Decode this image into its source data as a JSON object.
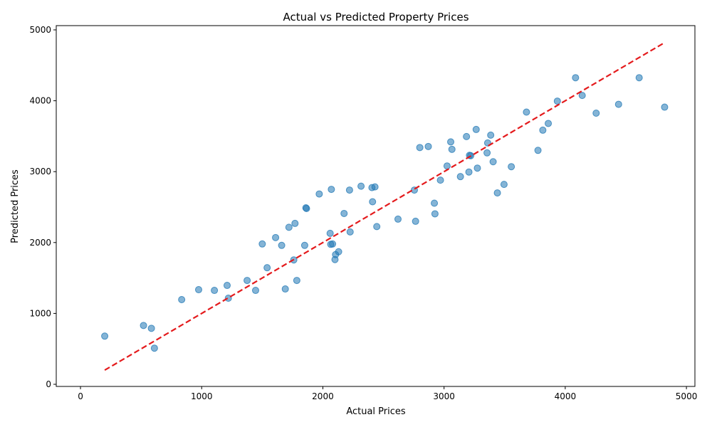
{
  "chart_data": {
    "type": "scatter",
    "title": "Actual vs Predicted Property Prices",
    "xlabel": "Actual Prices",
    "ylabel": "Predicted Prices",
    "xlim": [
      -200,
      5070
    ],
    "ylim": [
      -30,
      5060
    ],
    "xticks": [
      0,
      1000,
      2000,
      3000,
      4000,
      5000
    ],
    "yticks": [
      0,
      1000,
      2000,
      3000,
      4000,
      5000
    ],
    "grid": false,
    "point_color": "#1f77b4",
    "reference_line": {
      "label": "",
      "color": "#e41a1c",
      "style": "dashed",
      "x": [
        200,
        4820
      ],
      "y": [
        200,
        4820
      ]
    },
    "points": [
      {
        "x": 200,
        "y": 680
      },
      {
        "x": 520,
        "y": 830
      },
      {
        "x": 585,
        "y": 790
      },
      {
        "x": 610,
        "y": 510
      },
      {
        "x": 835,
        "y": 1195
      },
      {
        "x": 975,
        "y": 1335
      },
      {
        "x": 1105,
        "y": 1325
      },
      {
        "x": 1210,
        "y": 1395
      },
      {
        "x": 1220,
        "y": 1215
      },
      {
        "x": 1375,
        "y": 1465
      },
      {
        "x": 1445,
        "y": 1325
      },
      {
        "x": 1500,
        "y": 1980
      },
      {
        "x": 1540,
        "y": 1645
      },
      {
        "x": 1610,
        "y": 2070
      },
      {
        "x": 1660,
        "y": 1960
      },
      {
        "x": 1690,
        "y": 1345
      },
      {
        "x": 1720,
        "y": 2215
      },
      {
        "x": 1760,
        "y": 1755
      },
      {
        "x": 1770,
        "y": 2270
      },
      {
        "x": 1785,
        "y": 1465
      },
      {
        "x": 1850,
        "y": 1960
      },
      {
        "x": 1860,
        "y": 2490
      },
      {
        "x": 1865,
        "y": 2480
      },
      {
        "x": 1970,
        "y": 2685
      },
      {
        "x": 2060,
        "y": 2130
      },
      {
        "x": 2065,
        "y": 1975
      },
      {
        "x": 2070,
        "y": 2750
      },
      {
        "x": 2080,
        "y": 1980
      },
      {
        "x": 2100,
        "y": 1760
      },
      {
        "x": 2105,
        "y": 1830
      },
      {
        "x": 2130,
        "y": 1870
      },
      {
        "x": 2175,
        "y": 2410
      },
      {
        "x": 2220,
        "y": 2740
      },
      {
        "x": 2225,
        "y": 2150
      },
      {
        "x": 2315,
        "y": 2795
      },
      {
        "x": 2405,
        "y": 2775
      },
      {
        "x": 2410,
        "y": 2575
      },
      {
        "x": 2430,
        "y": 2785
      },
      {
        "x": 2445,
        "y": 2225
      },
      {
        "x": 2620,
        "y": 2330
      },
      {
        "x": 2755,
        "y": 2740
      },
      {
        "x": 2765,
        "y": 2300
      },
      {
        "x": 2800,
        "y": 3340
      },
      {
        "x": 2870,
        "y": 3355
      },
      {
        "x": 2920,
        "y": 2555
      },
      {
        "x": 2925,
        "y": 2405
      },
      {
        "x": 2970,
        "y": 2880
      },
      {
        "x": 3025,
        "y": 3080
      },
      {
        "x": 3055,
        "y": 3420
      },
      {
        "x": 3065,
        "y": 3315
      },
      {
        "x": 3135,
        "y": 2930
      },
      {
        "x": 3185,
        "y": 3495
      },
      {
        "x": 3205,
        "y": 2995
      },
      {
        "x": 3210,
        "y": 3230
      },
      {
        "x": 3220,
        "y": 3225
      },
      {
        "x": 3265,
        "y": 3595
      },
      {
        "x": 3275,
        "y": 3050
      },
      {
        "x": 3355,
        "y": 3265
      },
      {
        "x": 3360,
        "y": 3405
      },
      {
        "x": 3385,
        "y": 3515
      },
      {
        "x": 3405,
        "y": 3140
      },
      {
        "x": 3440,
        "y": 2700
      },
      {
        "x": 3495,
        "y": 2820
      },
      {
        "x": 3555,
        "y": 3070
      },
      {
        "x": 3680,
        "y": 3840
      },
      {
        "x": 3775,
        "y": 3300
      },
      {
        "x": 3815,
        "y": 3585
      },
      {
        "x": 3860,
        "y": 3680
      },
      {
        "x": 3935,
        "y": 3995
      },
      {
        "x": 4085,
        "y": 4325
      },
      {
        "x": 4140,
        "y": 4075
      },
      {
        "x": 4255,
        "y": 3825
      },
      {
        "x": 4440,
        "y": 3950
      },
      {
        "x": 4610,
        "y": 4325
      },
      {
        "x": 4820,
        "y": 3910
      }
    ]
  }
}
